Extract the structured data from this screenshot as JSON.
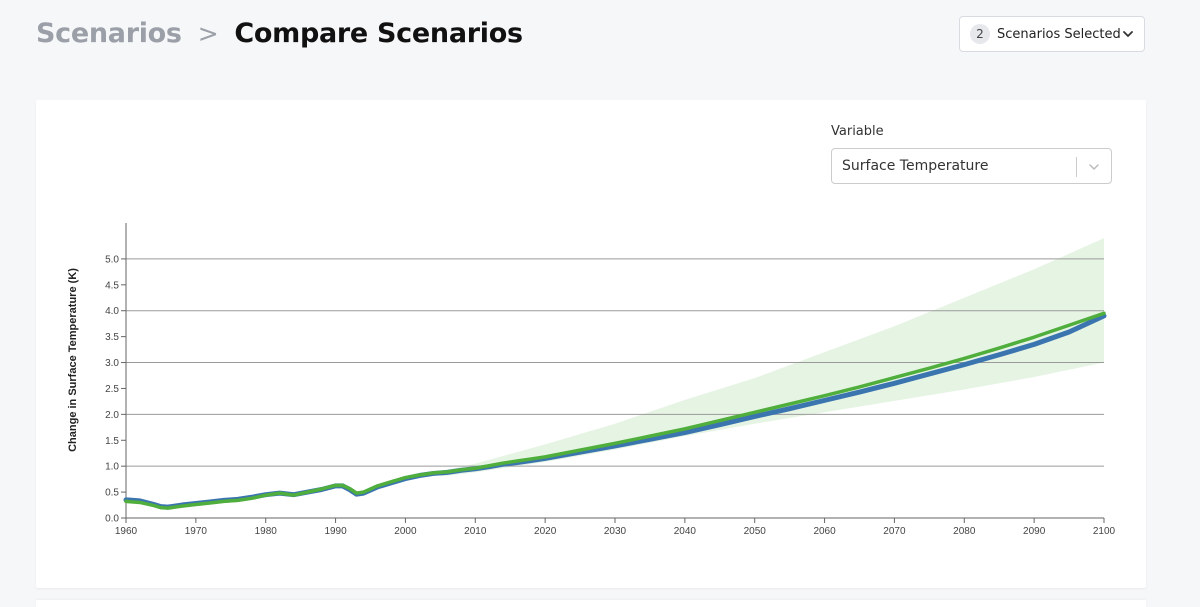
{
  "breadcrumb": {
    "parent": "Scenarios",
    "separator": ">",
    "current": "Compare Scenarios"
  },
  "scenario_selector": {
    "count": "2",
    "label": "Scenarios Selected",
    "icon": "chevron-down-icon"
  },
  "variable_selector": {
    "label": "Variable",
    "value": "Surface Temperature",
    "icon": "chevron-down-icon"
  },
  "colors": {
    "series_blue": "#3b75af",
    "series_green": "#4fae3c",
    "band": "#e6f4e4",
    "grid": "#9a9a9a",
    "axis": "#666666"
  },
  "chart_data": {
    "type": "line",
    "title": "",
    "xlabel": "",
    "ylabel": "Change in Surface Temperature (K)",
    "xlim": [
      1960,
      2100
    ],
    "ylim": [
      0,
      5.5
    ],
    "x_ticks": [
      "1960",
      "1970",
      "1980",
      "1990",
      "2000",
      "2010",
      "2020",
      "2030",
      "2040",
      "2050",
      "2060",
      "2070",
      "2080",
      "2090",
      "2100"
    ],
    "y_ticks": [
      "0.0",
      "0.5",
      "1.0",
      "1.5",
      "2.0",
      "2.5",
      "3.0",
      "3.5",
      "4.0",
      "4.5",
      "5.0"
    ],
    "gridlines_y": [
      1,
      2,
      3,
      4,
      5
    ],
    "legend": "none",
    "x": [
      1960,
      1962,
      1964,
      1965,
      1966,
      1968,
      1970,
      1972,
      1974,
      1976,
      1978,
      1980,
      1982,
      1984,
      1986,
      1988,
      1990,
      1991,
      1992,
      1993,
      1994,
      1996,
      1998,
      2000,
      2002,
      2004,
      2006,
      2008,
      2010,
      2012,
      2014,
      2016,
      2018,
      2020,
      2025,
      2030,
      2035,
      2040,
      2045,
      2050,
      2055,
      2060,
      2065,
      2070,
      2075,
      2080,
      2085,
      2090,
      2095,
      2100
    ],
    "series": [
      {
        "color": "#3b75af",
        "values": [
          0.35,
          0.33,
          0.26,
          0.22,
          0.21,
          0.25,
          0.28,
          0.31,
          0.34,
          0.36,
          0.4,
          0.45,
          0.48,
          0.45,
          0.5,
          0.55,
          0.62,
          0.62,
          0.55,
          0.46,
          0.48,
          0.6,
          0.68,
          0.76,
          0.82,
          0.86,
          0.88,
          0.92,
          0.95,
          0.99,
          1.04,
          1.07,
          1.11,
          1.15,
          1.27,
          1.39,
          1.52,
          1.65,
          1.8,
          1.96,
          2.11,
          2.27,
          2.43,
          2.6,
          2.78,
          2.96,
          3.15,
          3.35,
          3.59,
          3.9
        ]
      },
      {
        "color": "#4fae3c",
        "values": [
          0.32,
          0.3,
          0.24,
          0.2,
          0.19,
          0.23,
          0.26,
          0.29,
          0.32,
          0.34,
          0.38,
          0.44,
          0.48,
          0.44,
          0.5,
          0.56,
          0.63,
          0.63,
          0.57,
          0.48,
          0.5,
          0.62,
          0.7,
          0.78,
          0.83,
          0.87,
          0.89,
          0.93,
          0.96,
          1.01,
          1.06,
          1.1,
          1.14,
          1.18,
          1.31,
          1.44,
          1.58,
          1.72,
          1.88,
          2.04,
          2.2,
          2.36,
          2.53,
          2.71,
          2.89,
          3.08,
          3.28,
          3.49,
          3.72,
          3.95
        ]
      }
    ],
    "band": {
      "x": [
        2005,
        2010,
        2020,
        2030,
        2040,
        2050,
        2060,
        2070,
        2080,
        2090,
        2100
      ],
      "low": [
        0.8,
        0.88,
        1.08,
        1.32,
        1.58,
        1.82,
        2.04,
        2.26,
        2.48,
        2.72,
        3.0
      ],
      "high": [
        0.9,
        1.05,
        1.42,
        1.82,
        2.28,
        2.7,
        3.2,
        3.7,
        4.25,
        4.8,
        5.4
      ]
    }
  }
}
